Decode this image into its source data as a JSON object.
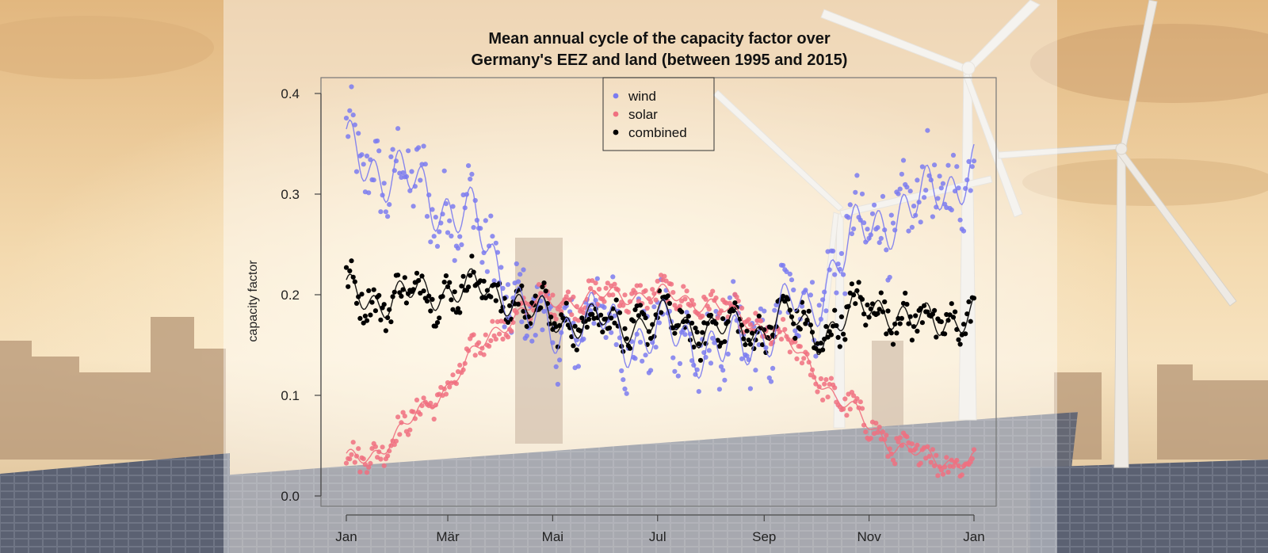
{
  "chart_data": {
    "type": "scatter",
    "title_lines": [
      "Mean annual cycle of the capacity factor over",
      "Germany's EEZ and land (between 1995 and 2015)"
    ],
    "ylabel": "capacity factor",
    "xlabel": "",
    "ylim": [
      0,
      0.4
    ],
    "yticks": [
      "0.0",
      "0.1",
      "0.2",
      "0.3",
      "0.4"
    ],
    "xlim": [
      1,
      366
    ],
    "x_ticks": [
      {
        "day": 1,
        "label": "Jan"
      },
      {
        "day": 60,
        "label": "Mär"
      },
      {
        "day": 121,
        "label": "Mai"
      },
      {
        "day": 182,
        "label": "Jul"
      },
      {
        "day": 244,
        "label": "Sep"
      },
      {
        "day": 305,
        "label": "Nov"
      },
      {
        "day": 366,
        "label": "Jan"
      }
    ],
    "legend_position": "top-center",
    "grid": false,
    "series": [
      {
        "name": "wind",
        "color": "#7B7BF0",
        "points_description_daily_anchors": [
          [
            1,
            0.34
          ],
          [
            15,
            0.33
          ],
          [
            30,
            0.32
          ],
          [
            45,
            0.3
          ],
          [
            60,
            0.29
          ],
          [
            75,
            0.27
          ],
          [
            85,
            0.24
          ],
          [
            95,
            0.21
          ],
          [
            110,
            0.17
          ],
          [
            120,
            0.16
          ],
          [
            135,
            0.18
          ],
          [
            150,
            0.17
          ],
          [
            165,
            0.16
          ],
          [
            180,
            0.16
          ],
          [
            195,
            0.16
          ],
          [
            210,
            0.15
          ],
          [
            220,
            0.14
          ],
          [
            230,
            0.15
          ],
          [
            240,
            0.16
          ],
          [
            250,
            0.17
          ],
          [
            260,
            0.19
          ],
          [
            270,
            0.18
          ],
          [
            280,
            0.22
          ],
          [
            290,
            0.24
          ],
          [
            300,
            0.26
          ],
          [
            315,
            0.28
          ],
          [
            330,
            0.28
          ],
          [
            345,
            0.31
          ],
          [
            366,
            0.32
          ]
        ]
      },
      {
        "name": "solar",
        "color": "#F07080",
        "points_description_daily_anchors": [
          [
            1,
            0.035
          ],
          [
            15,
            0.04
          ],
          [
            30,
            0.06
          ],
          [
            45,
            0.085
          ],
          [
            60,
            0.11
          ],
          [
            75,
            0.14
          ],
          [
            85,
            0.16
          ],
          [
            95,
            0.175
          ],
          [
            110,
            0.19
          ],
          [
            125,
            0.195
          ],
          [
            140,
            0.195
          ],
          [
            155,
            0.2
          ],
          [
            170,
            0.2
          ],
          [
            185,
            0.2
          ],
          [
            200,
            0.195
          ],
          [
            215,
            0.19
          ],
          [
            225,
            0.18
          ],
          [
            240,
            0.17
          ],
          [
            255,
            0.155
          ],
          [
            265,
            0.14
          ],
          [
            275,
            0.12
          ],
          [
            285,
            0.1
          ],
          [
            295,
            0.085
          ],
          [
            305,
            0.07
          ],
          [
            320,
            0.05
          ],
          [
            335,
            0.04
          ],
          [
            350,
            0.035
          ],
          [
            366,
            0.035
          ]
        ]
      },
      {
        "name": "combined",
        "color": "#000000",
        "points_description_daily_anchors": [
          [
            1,
            0.2
          ],
          [
            20,
            0.195
          ],
          [
            40,
            0.2
          ],
          [
            60,
            0.205
          ],
          [
            80,
            0.205
          ],
          [
            95,
            0.2
          ],
          [
            110,
            0.18
          ],
          [
            125,
            0.175
          ],
          [
            140,
            0.175
          ],
          [
            160,
            0.17
          ],
          [
            180,
            0.175
          ],
          [
            200,
            0.17
          ],
          [
            220,
            0.165
          ],
          [
            240,
            0.165
          ],
          [
            255,
            0.18
          ],
          [
            265,
            0.17
          ],
          [
            275,
            0.16
          ],
          [
            285,
            0.17
          ],
          [
            300,
            0.185
          ],
          [
            315,
            0.19
          ],
          [
            330,
            0.17
          ],
          [
            345,
            0.175
          ],
          [
            366,
            0.18
          ]
        ]
      }
    ]
  }
}
